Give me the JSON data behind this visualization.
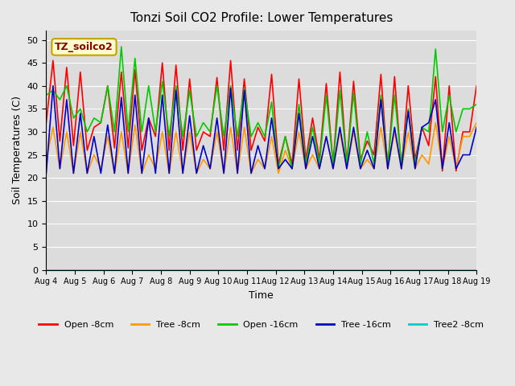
{
  "title": "Tonzi Soil CO2 Profile: Lower Temperatures",
  "xlabel": "Time",
  "ylabel": "Soil Temperatures (C)",
  "ylim": [
    0,
    52
  ],
  "yticks": [
    0,
    5,
    10,
    15,
    20,
    25,
    30,
    35,
    40,
    45,
    50
  ],
  "annotation": "TZ_soilco2",
  "annotation_color": "#8b0000",
  "annotation_bg": "#ffffcc",
  "annotation_border": "#c8a000",
  "line_colors": {
    "open_8": "#ff0000",
    "tree_8": "#ff9900",
    "open_16": "#00cc00",
    "tree_16": "#0000cc",
    "tree2_8": "#00cccc"
  },
  "legend_labels": [
    "Open -8cm",
    "Tree -8cm",
    "Open -16cm",
    "Tree -16cm",
    "Tree2 -8cm"
  ],
  "x_tick_labels": [
    "Aug 4",
    "Aug 5",
    "Aug 6",
    "Aug 7",
    "Aug 8",
    "Aug 9",
    "Aug 10",
    "Aug 11",
    "Aug 12",
    "Aug 13",
    "Aug 14",
    "Aug 15",
    "Aug 16",
    "Aug 17",
    "Aug 18",
    "Aug 19"
  ],
  "days": 15,
  "open_8cm": [
    32,
    45.5,
    28,
    44,
    27,
    43,
    26,
    31,
    32,
    40,
    26.5,
    43,
    26.5,
    43.5,
    26,
    33,
    29,
    45,
    26,
    44.5,
    26,
    41.5,
    26,
    30,
    29,
    41.8,
    26,
    45.5,
    26,
    41.5,
    26,
    31,
    28,
    42.5,
    23,
    29,
    23,
    41.5,
    24,
    33,
    24,
    40.5,
    23,
    43,
    23,
    41,
    24,
    28,
    25,
    42.5,
    22,
    42,
    22,
    40,
    24,
    31,
    27,
    42,
    21.5,
    40,
    21.5,
    30,
    30,
    40
  ],
  "tree_8cm": [
    24,
    31,
    22,
    30,
    21,
    30,
    21,
    25,
    22,
    29,
    21,
    30,
    21,
    31.5,
    21,
    25,
    22,
    30,
    21,
    30,
    21,
    30,
    21,
    24,
    22,
    30,
    21,
    31,
    21,
    31,
    21,
    24,
    22,
    29,
    21,
    26,
    22,
    30,
    22,
    25,
    22,
    29,
    22,
    30,
    22,
    30,
    22,
    24,
    22,
    31,
    22,
    30,
    22,
    30,
    22,
    25,
    23,
    32,
    22,
    29,
    22,
    29,
    29,
    32
  ],
  "open_16cm": [
    38,
    39,
    37,
    40,
    33,
    35,
    30,
    33,
    32,
    40,
    30,
    48.5,
    30,
    46,
    30,
    40,
    30,
    41,
    29,
    40,
    29,
    39,
    29,
    32,
    30,
    40,
    29,
    40,
    29,
    39.5,
    29,
    32,
    29,
    36.5,
    22,
    29,
    22,
    36,
    23,
    31,
    23,
    38,
    23,
    39,
    23,
    38.5,
    23,
    30,
    23,
    38,
    23,
    38,
    23,
    35,
    23,
    31,
    30,
    48,
    30,
    38,
    30,
    35,
    35,
    36
  ],
  "tree_16cm": [
    21,
    40,
    22,
    37,
    21,
    34,
    21,
    29,
    21,
    31.5,
    21,
    37.5,
    21,
    38,
    21,
    33,
    21,
    38,
    21,
    39,
    21,
    33.5,
    21,
    27,
    22,
    33,
    21,
    39.5,
    21,
    39,
    21,
    27,
    22,
    33,
    22,
    24,
    22,
    34,
    22,
    29,
    22,
    29,
    22,
    31,
    22,
    31,
    22,
    26,
    22,
    37,
    22,
    31,
    22,
    34.5,
    22,
    31,
    32,
    37,
    22,
    32,
    22,
    25,
    25,
    31
  ],
  "tree2_8cm": [
    0,
    0,
    0,
    0,
    0,
    0,
    0,
    0,
    0,
    0,
    0,
    0,
    0,
    0,
    0,
    0,
    0,
    0,
    0,
    0,
    0,
    0,
    0,
    0,
    0,
    0,
    0,
    0,
    0,
    0,
    0,
    0,
    0,
    0,
    0,
    0,
    0,
    0,
    0,
    0,
    0,
    0,
    0,
    0,
    0,
    0,
    0,
    0,
    0,
    0,
    0,
    0,
    0,
    0,
    0,
    0,
    0,
    0,
    0,
    0,
    0,
    0,
    0,
    0
  ]
}
